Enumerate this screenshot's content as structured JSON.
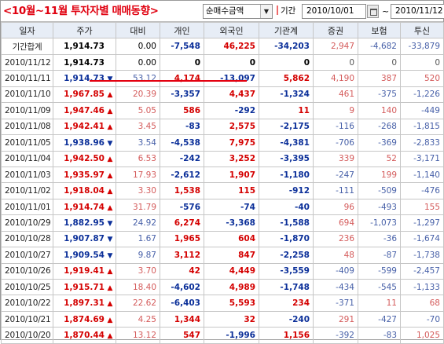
{
  "toolbar": {
    "title": "<10월~11월 투자자별 매매동향>",
    "mode_value": "순매수금액",
    "period_label": "기간",
    "date_from": "2010/10/01",
    "date_separator": "~",
    "date_to": "2010/11/12"
  },
  "columns": [
    "일자",
    "주가",
    "대비",
    "개인",
    "외국인",
    "기관계",
    "증권",
    "보험",
    "투신"
  ],
  "rows": [
    {
      "date": "기간합계",
      "price": "1,914.73",
      "dir": "",
      "change": "0.00",
      "indiv": "-7,548",
      "foreign": "46,225",
      "inst": "-34,203",
      "sec": "2,947",
      "ins": "-4,682",
      "trust": "-33,879"
    },
    {
      "date": "2010/11/12",
      "price": "1,914.73",
      "dir": "",
      "change": "0.00",
      "indiv": "0",
      "foreign": "0",
      "inst": "0",
      "sec": "0",
      "ins": "0",
      "trust": "0"
    },
    {
      "date": "2010/11/11",
      "price": "1,914.73",
      "dir": "down",
      "change": "53.12",
      "indiv": "4,174",
      "foreign": "-13,097",
      "inst": "5,862",
      "sec": "4,190",
      "ins": "387",
      "trust": "520"
    },
    {
      "date": "2010/11/10",
      "price": "1,967.85",
      "dir": "up",
      "change": "20.39",
      "indiv": "-3,357",
      "foreign": "4,437",
      "inst": "-1,324",
      "sec": "461",
      "ins": "-375",
      "trust": "-1,226"
    },
    {
      "date": "2010/11/09",
      "price": "1,947.46",
      "dir": "up",
      "change": "5.05",
      "indiv": "586",
      "foreign": "-292",
      "inst": "11",
      "sec": "9",
      "ins": "140",
      "trust": "-449"
    },
    {
      "date": "2010/11/08",
      "price": "1,942.41",
      "dir": "up",
      "change": "3.45",
      "indiv": "-83",
      "foreign": "2,575",
      "inst": "-2,175",
      "sec": "-116",
      "ins": "-268",
      "trust": "-1,815"
    },
    {
      "date": "2010/11/05",
      "price": "1,938.96",
      "dir": "down",
      "change": "3.54",
      "indiv": "-4,538",
      "foreign": "7,975",
      "inst": "-4,381",
      "sec": "-706",
      "ins": "-369",
      "trust": "-2,833"
    },
    {
      "date": "2010/11/04",
      "price": "1,942.50",
      "dir": "up",
      "change": "6.53",
      "indiv": "-242",
      "foreign": "3,252",
      "inst": "-3,395",
      "sec": "339",
      "ins": "52",
      "trust": "-3,171"
    },
    {
      "date": "2010/11/03",
      "price": "1,935.97",
      "dir": "up",
      "change": "17.93",
      "indiv": "-2,612",
      "foreign": "1,907",
      "inst": "-1,180",
      "sec": "-247",
      "ins": "199",
      "trust": "-1,140"
    },
    {
      "date": "2010/11/02",
      "price": "1,918.04",
      "dir": "up",
      "change": "3.30",
      "indiv": "1,538",
      "foreign": "115",
      "inst": "-912",
      "sec": "-111",
      "ins": "-509",
      "trust": "-476"
    },
    {
      "date": "2010/11/01",
      "price": "1,914.74",
      "dir": "up",
      "change": "31.79",
      "indiv": "-576",
      "foreign": "-74",
      "inst": "-40",
      "sec": "96",
      "ins": "-493",
      "trust": "155"
    },
    {
      "date": "2010/10/29",
      "price": "1,882.95",
      "dir": "down",
      "change": "24.92",
      "indiv": "6,274",
      "foreign": "-3,368",
      "inst": "-1,588",
      "sec": "694",
      "ins": "-1,073",
      "trust": "-1,297"
    },
    {
      "date": "2010/10/28",
      "price": "1,907.87",
      "dir": "down",
      "change": "1.67",
      "indiv": "1,965",
      "foreign": "604",
      "inst": "-1,870",
      "sec": "236",
      "ins": "-36",
      "trust": "-1,674"
    },
    {
      "date": "2010/10/27",
      "price": "1,909.54",
      "dir": "down",
      "change": "9.87",
      "indiv": "3,112",
      "foreign": "847",
      "inst": "-2,258",
      "sec": "48",
      "ins": "-87",
      "trust": "-1,738"
    },
    {
      "date": "2010/10/26",
      "price": "1,919.41",
      "dir": "up",
      "change": "3.70",
      "indiv": "42",
      "foreign": "4,449",
      "inst": "-3,559",
      "sec": "-409",
      "ins": "-599",
      "trust": "-2,457"
    },
    {
      "date": "2010/10/25",
      "price": "1,915.71",
      "dir": "up",
      "change": "18.40",
      "indiv": "-4,602",
      "foreign": "4,989",
      "inst": "-1,748",
      "sec": "-434",
      "ins": "-545",
      "trust": "-1,133"
    },
    {
      "date": "2010/10/22",
      "price": "1,897.31",
      "dir": "up",
      "change": "22.62",
      "indiv": "-6,403",
      "foreign": "5,593",
      "inst": "234",
      "sec": "-371",
      "ins": "11",
      "trust": "68"
    },
    {
      "date": "2010/10/21",
      "price": "1,874.69",
      "dir": "up",
      "change": "4.25",
      "indiv": "1,344",
      "foreign": "32",
      "inst": "-240",
      "sec": "291",
      "ins": "-427",
      "trust": "-70"
    },
    {
      "date": "2010/10/20",
      "price": "1,870.44",
      "dir": "up",
      "change": "13.12",
      "indiv": "547",
      "foreign": "-1,996",
      "inst": "1,156",
      "sec": "-392",
      "ins": "-83",
      "trust": "1,025"
    }
  ],
  "highlight": {
    "row_index": 2,
    "underline_color": "#e3000f"
  },
  "colors": {
    "title": "#e0000f",
    "up": "#d40000",
    "down": "#0b2f99",
    "header_bg": "#e7edf6"
  },
  "icons": {
    "up": "triangle-up",
    "down": "triangle-down",
    "calendar": "calendar-icon",
    "dropdown": "chevron-down-icon"
  }
}
